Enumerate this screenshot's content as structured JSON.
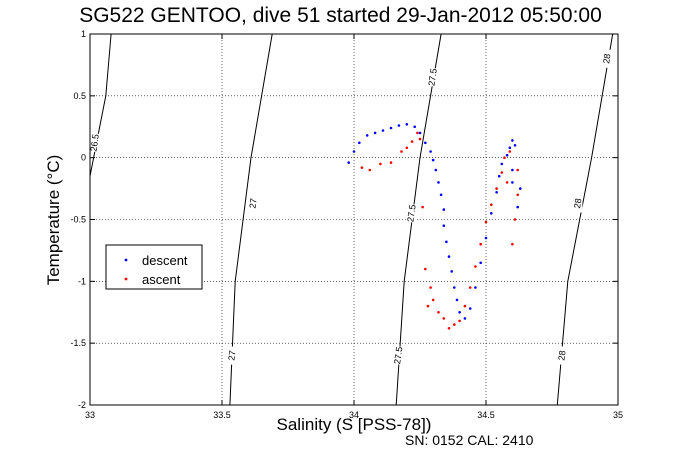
{
  "chart_data": {
    "type": "scatter",
    "title": "SG522 GENTOO, dive 51 started 29-Jan-2012 05:50:00",
    "xlabel": "Salinity (S [PSS-78])",
    "ylabel": "Temperature (°C)",
    "footer": "SN: 0152  CAL: 2410",
    "xlim": [
      33,
      35
    ],
    "ylim": [
      -2,
      1
    ],
    "xticks": [
      33,
      33.5,
      34,
      34.5,
      35
    ],
    "xtick_labels": [
      "33",
      "33.5",
      "34",
      "34.5",
      "35"
    ],
    "yticks": [
      1,
      0.5,
      0,
      -0.5,
      -1,
      -1.5,
      -2
    ],
    "ytick_labels": [
      "1",
      "0.5",
      "0",
      "-0.5",
      "-1",
      "-1.5",
      "-2"
    ],
    "grid": true,
    "legend_position": "middle-left",
    "density_contours": [
      {
        "label": "26.5",
        "points": [
          [
            33.08,
            1.0
          ],
          [
            33.06,
            0.5
          ],
          [
            33.0,
            -0.15
          ]
        ],
        "label_at": [
          33.02,
          0.12
        ]
      },
      {
        "label": "27",
        "points": [
          [
            33.69,
            1.0
          ],
          [
            33.61,
            0.0
          ],
          [
            33.55,
            -1.0
          ],
          [
            33.53,
            -2.0
          ]
        ],
        "label_at": [
          33.62,
          -0.37
        ]
      },
      {
        "label": "27",
        "points": [],
        "label_at": [
          33.54,
          -1.6
        ]
      },
      {
        "label": "27.5",
        "points": [
          [
            34.33,
            1.0
          ],
          [
            34.25,
            0.0
          ],
          [
            34.19,
            -1.0
          ],
          [
            34.16,
            -2.0
          ]
        ],
        "label_at": [
          34.3,
          0.65
        ]
      },
      {
        "label": "27.5",
        "points": [],
        "label_at": [
          34.22,
          -0.45
        ]
      },
      {
        "label": "27.5",
        "points": [],
        "label_at": [
          34.17,
          -1.6
        ]
      },
      {
        "label": "28",
        "points": [
          [
            34.98,
            1.0
          ],
          [
            34.9,
            0.0
          ],
          [
            34.81,
            -1.0
          ],
          [
            34.77,
            -2.0
          ]
        ],
        "label_at": [
          34.96,
          0.8
        ]
      },
      {
        "label": "28",
        "points": [],
        "label_at": [
          34.85,
          -0.37
        ]
      },
      {
        "label": "28",
        "points": [],
        "label_at": [
          34.79,
          -1.6
        ]
      }
    ],
    "series": [
      {
        "name": "descent",
        "color": "#0000ff",
        "marker": "dot",
        "points": [
          [
            33.98,
            -0.04
          ],
          [
            34.0,
            0.05
          ],
          [
            34.02,
            0.12
          ],
          [
            34.05,
            0.18
          ],
          [
            34.08,
            0.2
          ],
          [
            34.11,
            0.22
          ],
          [
            34.14,
            0.24
          ],
          [
            34.17,
            0.26
          ],
          [
            34.2,
            0.27
          ],
          [
            34.23,
            0.25
          ],
          [
            34.25,
            0.2
          ],
          [
            34.27,
            0.12
          ],
          [
            34.29,
            0.05
          ],
          [
            34.3,
            -0.02
          ],
          [
            34.31,
            -0.1
          ],
          [
            34.32,
            -0.2
          ],
          [
            34.33,
            -0.3
          ],
          [
            34.34,
            -0.42
          ],
          [
            34.34,
            -0.55
          ],
          [
            34.35,
            -0.68
          ],
          [
            34.36,
            -0.8
          ],
          [
            34.37,
            -0.92
          ],
          [
            34.38,
            -1.05
          ],
          [
            34.39,
            -1.15
          ],
          [
            34.4,
            -1.25
          ],
          [
            34.42,
            -1.3
          ],
          [
            34.44,
            -1.22
          ],
          [
            34.46,
            -1.05
          ],
          [
            34.48,
            -0.85
          ],
          [
            34.5,
            -0.65
          ],
          [
            34.52,
            -0.45
          ],
          [
            34.54,
            -0.28
          ],
          [
            34.55,
            -0.15
          ],
          [
            34.56,
            -0.05
          ],
          [
            34.58,
            0.02
          ],
          [
            34.59,
            0.08
          ],
          [
            34.6,
            0.14
          ],
          [
            34.61,
            0.1
          ],
          [
            34.6,
            -0.2
          ],
          [
            34.62,
            -0.4
          ],
          [
            34.6,
            -0.1
          ],
          [
            34.63,
            -0.25
          ]
        ]
      },
      {
        "name": "ascent",
        "color": "#ff0000",
        "marker": "dot",
        "points": [
          [
            34.03,
            -0.08
          ],
          [
            34.06,
            -0.1
          ],
          [
            34.1,
            -0.05
          ],
          [
            34.14,
            -0.04
          ],
          [
            34.18,
            0.05
          ],
          [
            34.2,
            0.08
          ],
          [
            34.22,
            0.13
          ],
          [
            34.25,
            0.15
          ],
          [
            34.24,
            0.2
          ],
          [
            34.26,
            -0.4
          ],
          [
            34.27,
            -0.9
          ],
          [
            34.29,
            -1.05
          ],
          [
            34.28,
            -1.2
          ],
          [
            34.3,
            -1.15
          ],
          [
            34.32,
            -1.25
          ],
          [
            34.34,
            -1.3
          ],
          [
            34.36,
            -1.38
          ],
          [
            34.38,
            -1.35
          ],
          [
            34.4,
            -1.32
          ],
          [
            34.42,
            -1.2
          ],
          [
            34.44,
            -1.05
          ],
          [
            34.46,
            -0.88
          ],
          [
            34.48,
            -0.7
          ],
          [
            34.5,
            -0.52
          ],
          [
            34.52,
            -0.38
          ],
          [
            34.54,
            -0.25
          ],
          [
            34.56,
            -0.12
          ],
          [
            34.57,
            0.0
          ],
          [
            34.58,
            -0.2
          ],
          [
            34.6,
            -0.7
          ],
          [
            34.61,
            -0.5
          ],
          [
            34.62,
            -0.1
          ],
          [
            34.59,
            0.05
          ],
          [
            34.62,
            -0.3
          ]
        ]
      }
    ]
  }
}
